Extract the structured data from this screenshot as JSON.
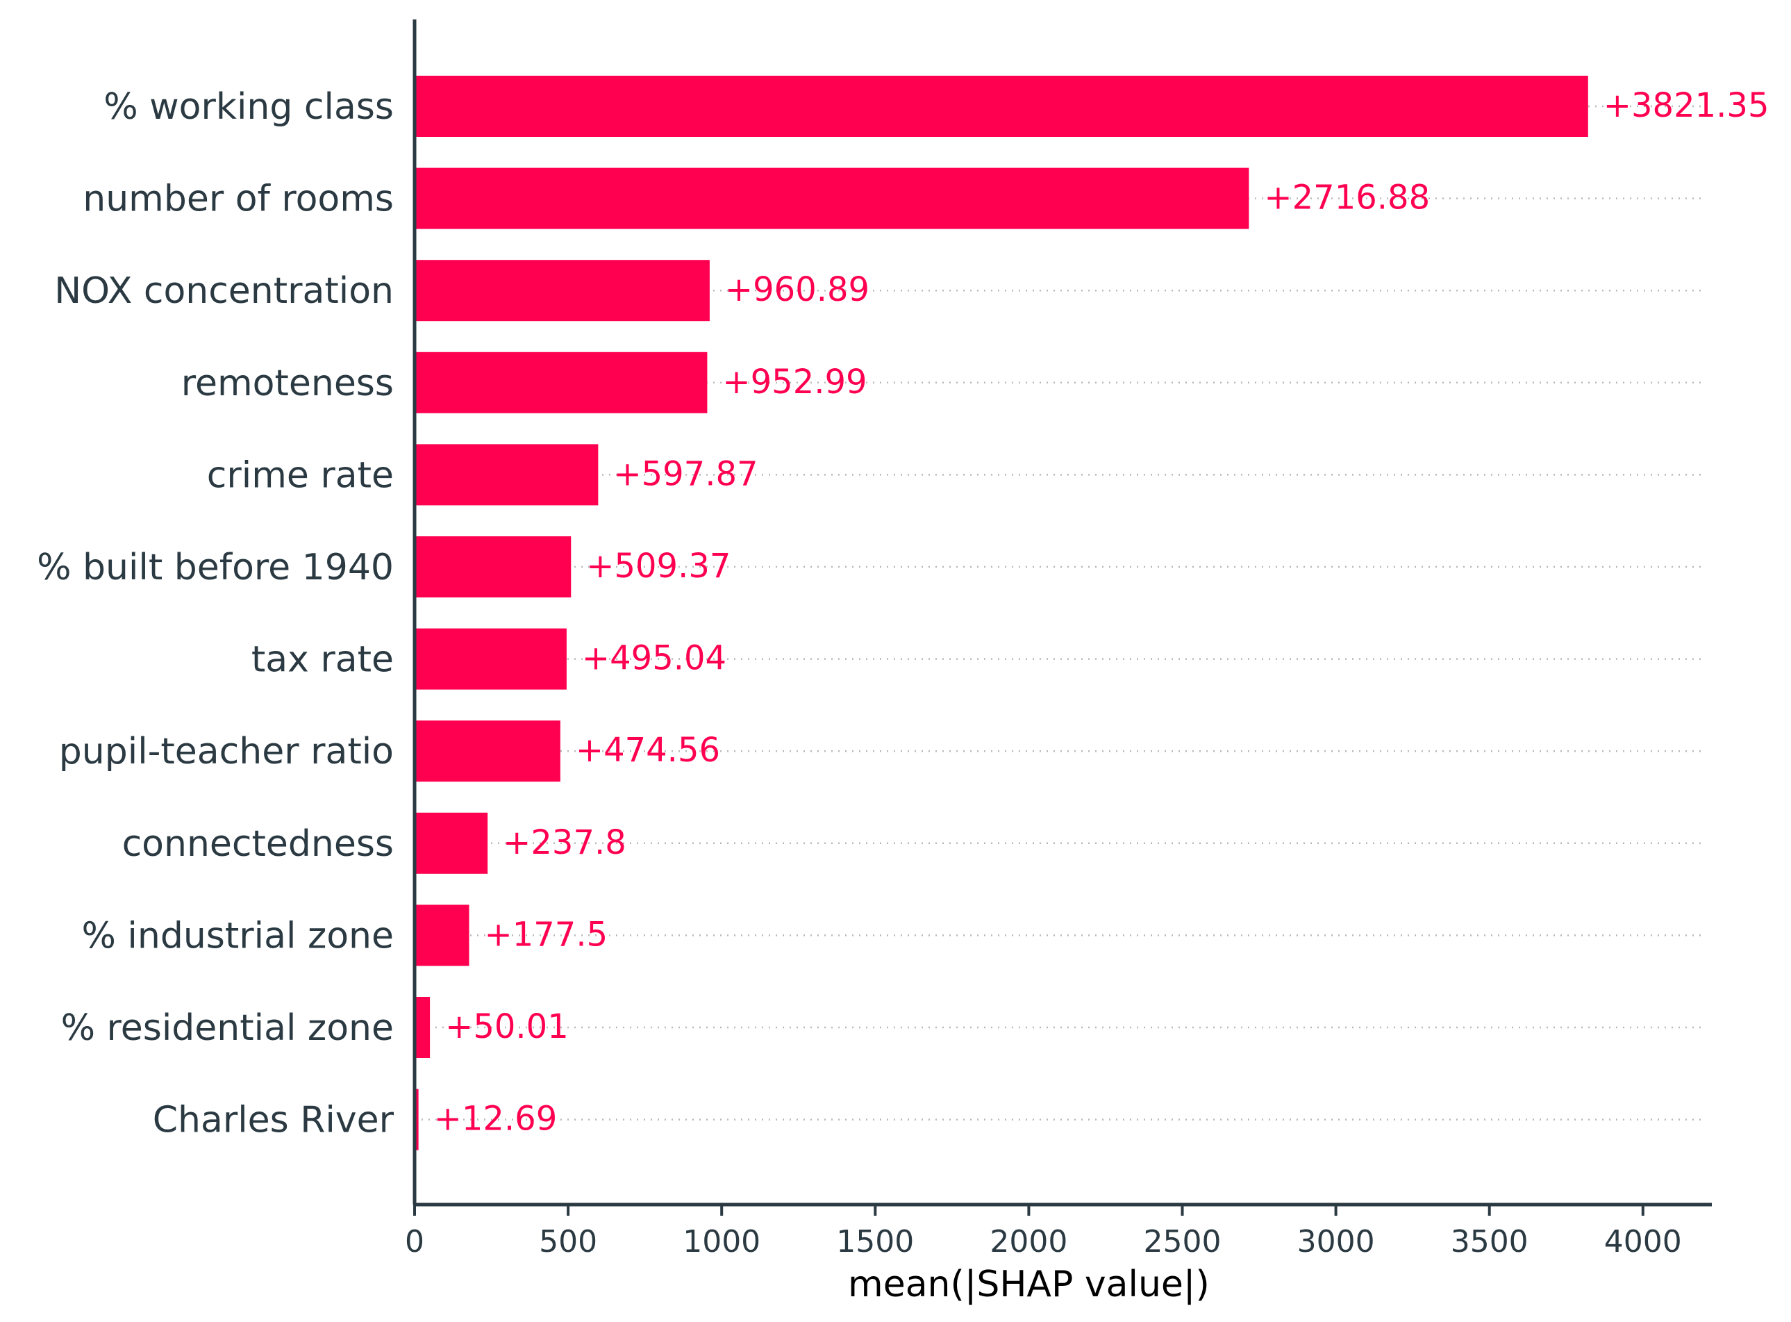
{
  "chart_data": {
    "type": "bar",
    "orientation": "horizontal",
    "categories": [
      "% working class",
      "number of rooms",
      "NOX concentration",
      "remoteness",
      "crime rate",
      "% built before 1940",
      "tax rate",
      "pupil-teacher ratio",
      "connectedness",
      "% industrial zone",
      "% residential zone",
      "Charles River"
    ],
    "values": [
      3821.35,
      2716.88,
      960.89,
      952.99,
      597.87,
      509.37,
      495.04,
      474.56,
      237.8,
      177.5,
      50.01,
      12.69
    ],
    "value_labels": [
      "+3821.35",
      "+2716.88",
      "+960.89",
      "+952.99",
      "+597.87",
      "+509.37",
      "+495.04",
      "+474.56",
      "+237.8",
      "+177.5",
      "+50.01",
      "+12.69"
    ],
    "xlabel": "mean(|SHAP value|)",
    "xticks": [
      0,
      500,
      1000,
      1500,
      2000,
      2500,
      3000,
      3500,
      4000
    ],
    "xlim": [
      0,
      4200
    ],
    "bar_color": "#ff0051",
    "text_color": "#2b3a42",
    "grid": false
  }
}
